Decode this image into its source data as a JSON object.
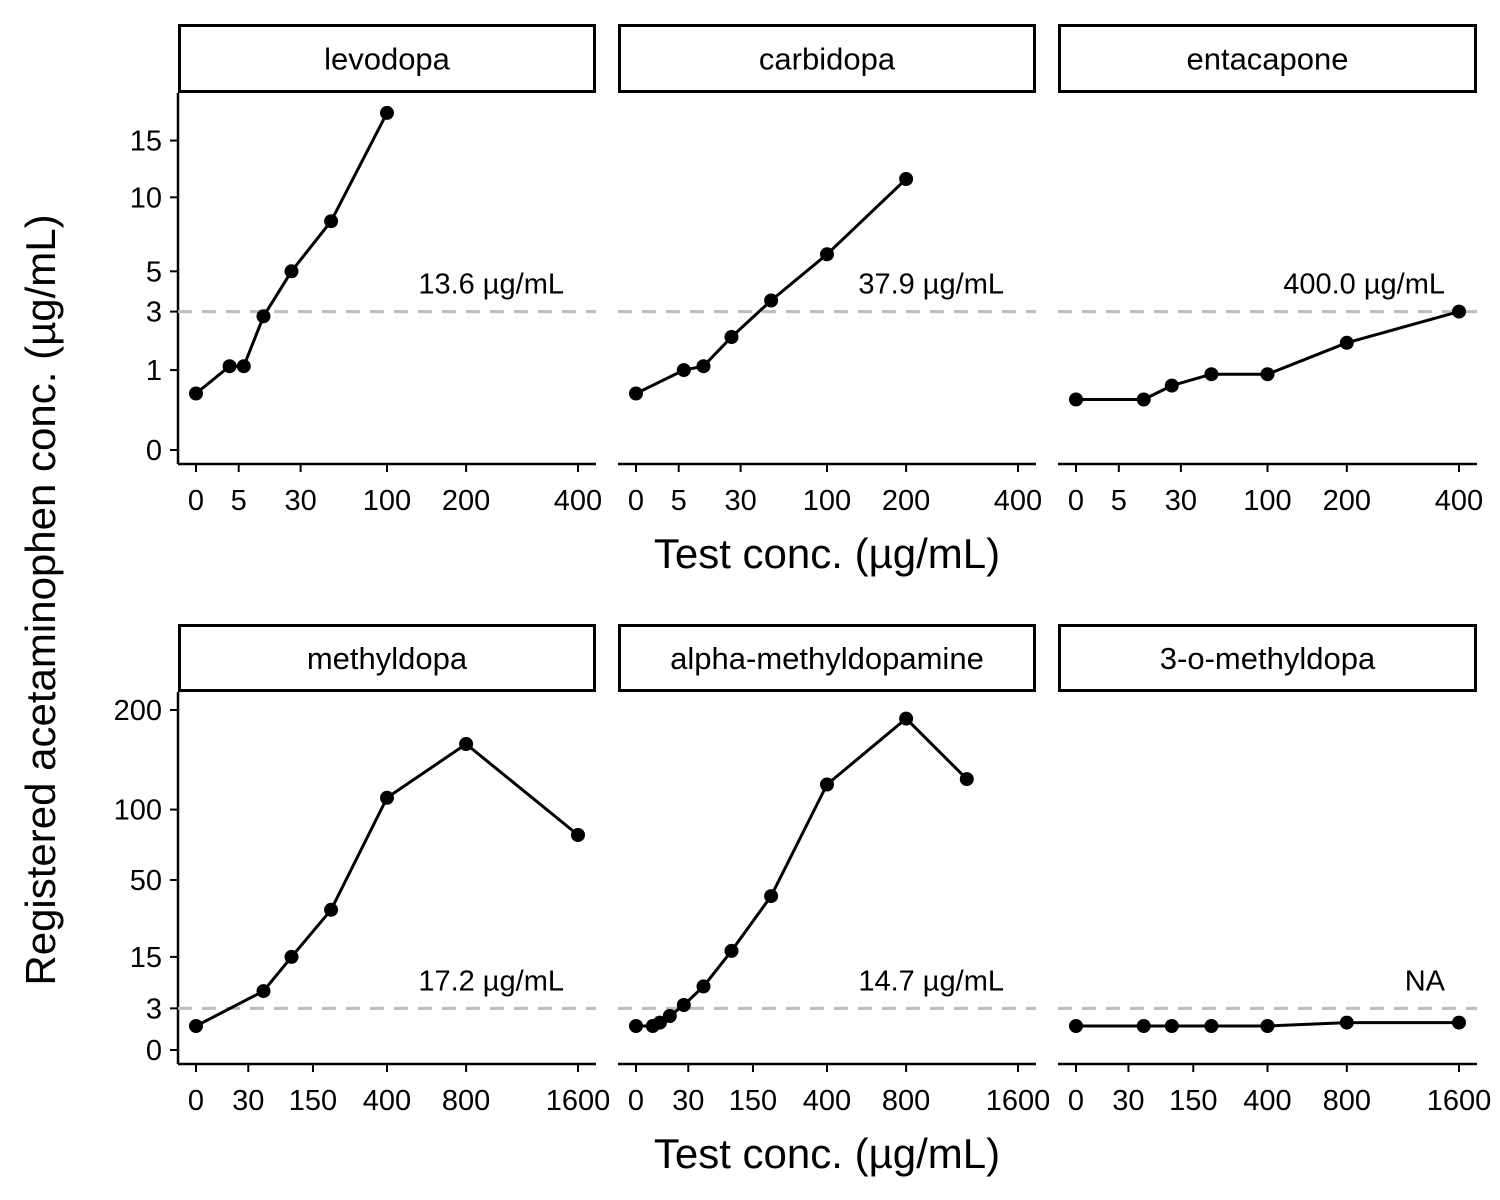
{
  "figure": {
    "y_axis_title": "Registered acetaminophen conc. (µg/mL)",
    "x_axis_title": "Test conc. (µg/mL)",
    "reference_line_y": 3,
    "colors": {
      "line": "#000000",
      "point": "#000000",
      "reference_line": "#bdbdbd",
      "strip_border": "#000000",
      "background": "#ffffff"
    }
  },
  "chart_data": [
    {
      "type": "line",
      "title": "levodopa",
      "annotation": "13.6 µg/mL",
      "x_scale": "sqrt",
      "y_scale": "sqrt",
      "x_ticks": [
        0,
        5,
        30,
        100,
        200,
        400
      ],
      "y_ticks": [
        0,
        1,
        3,
        5,
        10,
        15
      ],
      "xlim": [
        0,
        400
      ],
      "ylim": [
        0,
        18
      ],
      "x": [
        0,
        3.1,
        6.25,
        12.5,
        25,
        50,
        100
      ],
      "y": [
        0.5,
        1.1,
        1.1,
        2.8,
        5,
        8.2,
        17.8
      ]
    },
    {
      "type": "line",
      "title": "carbidopa",
      "annotation": "37.9 µg/mL",
      "x_scale": "sqrt",
      "y_scale": "sqrt",
      "x_ticks": [
        0,
        5,
        30,
        100,
        200,
        400
      ],
      "y_ticks": [
        0,
        1,
        3,
        5,
        10,
        15
      ],
      "xlim": [
        0,
        400
      ],
      "ylim": [
        0,
        18
      ],
      "x": [
        0,
        6.25,
        12.5,
        25,
        50,
        100,
        200
      ],
      "y": [
        0.5,
        1,
        1.1,
        2,
        3.5,
        6,
        11.5
      ]
    },
    {
      "type": "line",
      "title": "entacapone",
      "annotation": "400.0 µg/mL",
      "x_scale": "sqrt",
      "y_scale": "sqrt",
      "x_ticks": [
        0,
        5,
        30,
        100,
        200,
        400
      ],
      "y_ticks": [
        0,
        1,
        3,
        5,
        10,
        15
      ],
      "xlim": [
        0,
        400
      ],
      "ylim": [
        0,
        18
      ],
      "x": [
        0,
        12.5,
        25,
        50,
        100,
        200,
        400
      ],
      "y": [
        0.4,
        0.4,
        0.65,
        0.9,
        0.9,
        1.8,
        3
      ]
    },
    {
      "type": "line",
      "title": "methyldopa",
      "annotation": "17.2 µg/mL",
      "x_scale": "sqrt",
      "y_scale": "sqrt",
      "x_ticks": [
        0,
        30,
        150,
        400,
        800,
        1600
      ],
      "y_ticks": [
        0,
        3,
        15,
        50,
        100,
        200
      ],
      "xlim": [
        0,
        1600
      ],
      "ylim": [
        0,
        200
      ],
      "x": [
        0,
        50,
        100,
        200,
        400,
        800,
        1600
      ],
      "y": [
        1,
        6,
        15,
        34,
        110,
        162,
        80
      ]
    },
    {
      "type": "line",
      "title": "alpha-methyldopamine",
      "annotation": "14.7 µg/mL",
      "x_scale": "sqrt",
      "y_scale": "sqrt",
      "x_ticks": [
        0,
        30,
        150,
        400,
        800,
        1600
      ],
      "y_ticks": [
        0,
        3,
        15,
        50,
        100,
        200
      ],
      "xlim": [
        0,
        1600
      ],
      "ylim": [
        0,
        200
      ],
      "x": [
        0,
        3.1,
        6.25,
        12.5,
        25,
        50,
        100,
        200,
        400,
        800,
        1200
      ],
      "y": [
        1,
        1,
        1.3,
        2,
        3.5,
        7,
        17,
        41,
        122,
        190,
        127
      ]
    },
    {
      "type": "line",
      "title": "3-o-methyldopa",
      "annotation": "NA",
      "x_scale": "sqrt",
      "y_scale": "sqrt",
      "x_ticks": [
        0,
        30,
        150,
        400,
        800,
        1600
      ],
      "y_ticks": [],
      "xlim": [
        0,
        1600
      ],
      "ylim": [
        0,
        200
      ],
      "x": [
        0,
        50,
        100,
        200,
        400,
        800,
        1600
      ],
      "y": [
        1,
        1,
        1,
        1,
        1,
        1.3,
        1.3
      ]
    }
  ]
}
